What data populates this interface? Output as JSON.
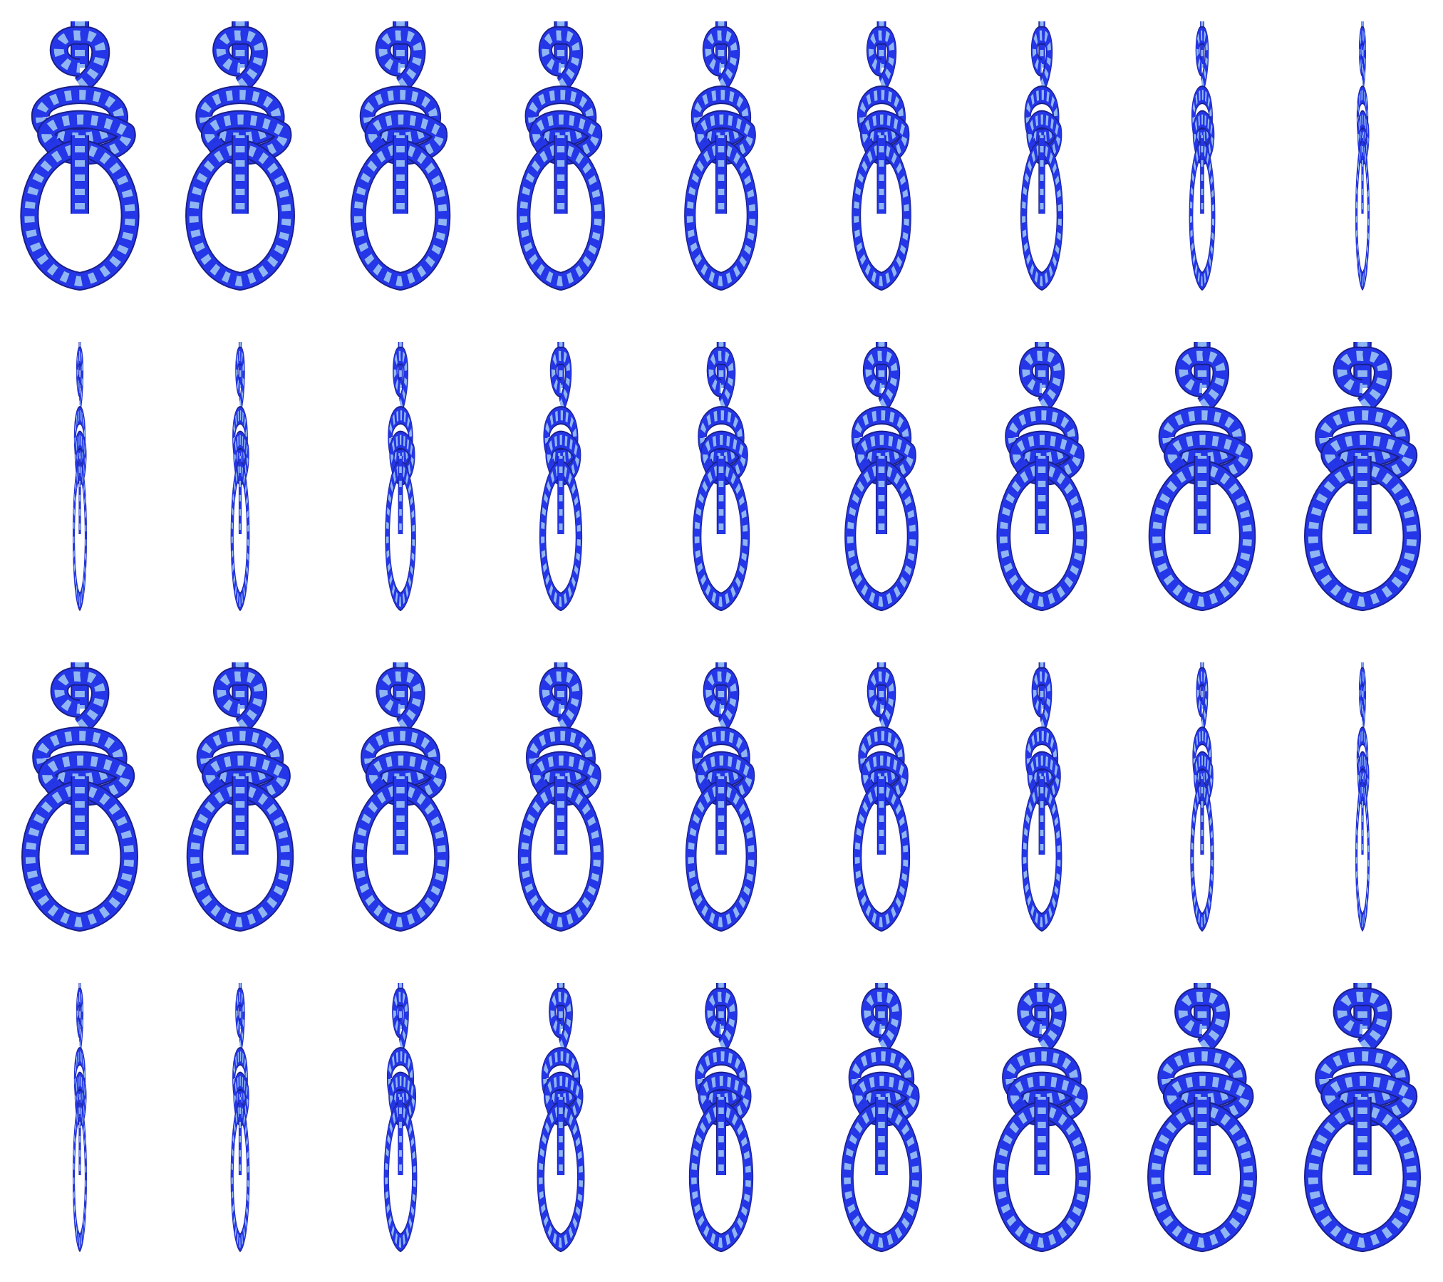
{
  "figure": {
    "description_free": true,
    "rows": 4,
    "columns": 9,
    "rope_colors": {
      "primary": "#2436e8",
      "secondary": "#8fb6f2",
      "outline": "#1a1f8a",
      "shadow": "#1b1d4a"
    },
    "frames": [
      {
        "row": 1,
        "view_rotation": 1.0
      },
      {
        "row": 1,
        "view_rotation": 0.92
      },
      {
        "row": 1,
        "view_rotation": 0.84
      },
      {
        "row": 1,
        "view_rotation": 0.74
      },
      {
        "row": 1,
        "view_rotation": 0.62
      },
      {
        "row": 1,
        "view_rotation": 0.5
      },
      {
        "row": 1,
        "view_rotation": 0.36
      },
      {
        "row": 1,
        "view_rotation": 0.22
      },
      {
        "row": 1,
        "view_rotation": 0.08
      },
      {
        "row": 2,
        "view_rotation": 0.1
      },
      {
        "row": 2,
        "view_rotation": 0.16
      },
      {
        "row": 2,
        "view_rotation": 0.26
      },
      {
        "row": 2,
        "view_rotation": 0.36
      },
      {
        "row": 2,
        "view_rotation": 0.48
      },
      {
        "row": 2,
        "view_rotation": 0.62
      },
      {
        "row": 2,
        "view_rotation": 0.76
      },
      {
        "row": 2,
        "view_rotation": 0.9
      },
      {
        "row": 2,
        "view_rotation": 0.98
      },
      {
        "row": 3,
        "view_rotation": 0.98
      },
      {
        "row": 3,
        "view_rotation": 0.9
      },
      {
        "row": 3,
        "view_rotation": 0.82
      },
      {
        "row": 3,
        "view_rotation": 0.72
      },
      {
        "row": 3,
        "view_rotation": 0.6
      },
      {
        "row": 3,
        "view_rotation": 0.48
      },
      {
        "row": 3,
        "view_rotation": 0.34
      },
      {
        "row": 3,
        "view_rotation": 0.2
      },
      {
        "row": 3,
        "view_rotation": 0.08
      },
      {
        "row": 4,
        "view_rotation": 0.1
      },
      {
        "row": 4,
        "view_rotation": 0.16
      },
      {
        "row": 4,
        "view_rotation": 0.28
      },
      {
        "row": 4,
        "view_rotation": 0.4
      },
      {
        "row": 4,
        "view_rotation": 0.54
      },
      {
        "row": 4,
        "view_rotation": 0.68
      },
      {
        "row": 4,
        "view_rotation": 0.82
      },
      {
        "row": 4,
        "view_rotation": 0.92
      },
      {
        "row": 4,
        "view_rotation": 0.98
      }
    ]
  }
}
